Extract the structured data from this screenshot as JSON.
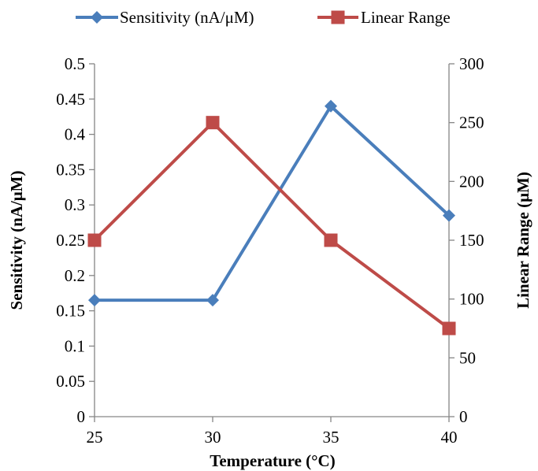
{
  "chart_data": {
    "type": "line",
    "title": "",
    "xlabel": "Temperature (°C)",
    "ylabel": "Sensitivity (nA/μM)",
    "y2label": "Linear Range (μM)",
    "x": [
      25,
      30,
      35,
      40
    ],
    "xticks": [
      "25",
      "30",
      "35",
      "40"
    ],
    "ylim": [
      0,
      0.5
    ],
    "yticks": [
      "0",
      "0.05",
      "0.1",
      "0.15",
      "0.2",
      "0.25",
      "0.3",
      "0.35",
      "0.4",
      "0.45",
      "0.5"
    ],
    "y2lim": [
      0,
      300
    ],
    "y2ticks": [
      "0",
      "50",
      "100",
      "150",
      "200",
      "250",
      "300"
    ],
    "grid": false,
    "legend_position": "top",
    "series": [
      {
        "name": "Sensitivity (nA/μM)",
        "axis": "left",
        "marker": "diamond",
        "color": "#4a7ebb",
        "values": [
          0.165,
          0.165,
          0.44,
          0.285
        ]
      },
      {
        "name": "Linear Range",
        "axis": "right",
        "marker": "square",
        "color": "#be4b48",
        "values": [
          150,
          250,
          150,
          75
        ]
      }
    ]
  }
}
